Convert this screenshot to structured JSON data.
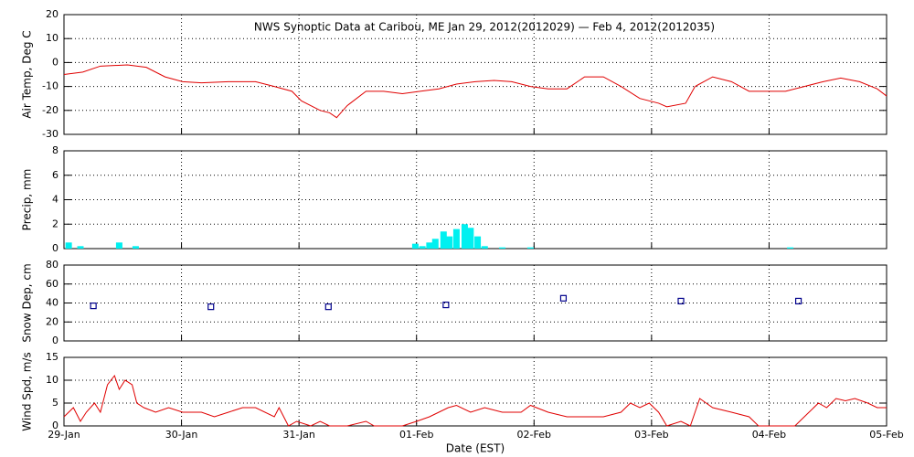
{
  "chart_data": [
    {
      "type": "line",
      "title": "NWS Synoptic Data at Caribou, ME   Jan 29, 2012(2012029) — Feb  4, 2012(2012035)",
      "y_label": "Air Temp, Deg C",
      "series": [
        {
          "color": "#e00000",
          "x": [
            0,
            0.16,
            0.31,
            0.54,
            0.7,
            0.86,
            1.01,
            1.17,
            1.4,
            1.63,
            1.79,
            1.94,
            2.02,
            2.18,
            2.26,
            2.32,
            2.41,
            2.57,
            2.72,
            2.88,
            3.03,
            3.19,
            3.34,
            3.5,
            3.66,
            3.81,
            3.97,
            4.12,
            4.28,
            4.43,
            4.59,
            4.74,
            4.9,
            5.06,
            5.13,
            5.29,
            5.37,
            5.52,
            5.68,
            5.83,
            5.99,
            6.14,
            6.3,
            6.46,
            6.61,
            6.77,
            6.92,
            7
          ],
          "values": [
            -5,
            -4,
            -1.5,
            -1,
            -2,
            -6,
            -8,
            -8.5,
            -8,
            -8,
            -10,
            -12,
            -16,
            -20,
            -21,
            -23,
            -18,
            -12,
            -12,
            -13,
            -12,
            -11,
            -9,
            -8,
            -7.5,
            -8,
            -10,
            -11,
            -11,
            -6,
            -6,
            -10,
            -15,
            -17,
            -18.5,
            -17,
            -10,
            -6,
            -8,
            -12,
            -12,
            -12,
            -10,
            -8,
            -6.5,
            -8,
            -11,
            -14
          ]
        }
      ],
      "xlim": [
        0,
        7
      ],
      "xticks": [
        0,
        1,
        2,
        3,
        4,
        5,
        6,
        7
      ],
      "ylim": [
        -30,
        20
      ],
      "yticks": [
        -30,
        -20,
        -10,
        0,
        10,
        20
      ],
      "grid": true
    },
    {
      "type": "bar",
      "y_label": "Precip, mm",
      "series": [
        {
          "color": "#00f0f0",
          "x": [
            0.04,
            0.14,
            0.47,
            0.61,
            2.99,
            3.05,
            3.11,
            3.16,
            3.23,
            3.28,
            3.34,
            3.41,
            3.46,
            3.52,
            3.58,
            3.73,
            3.97,
            6.18
          ],
          "values": [
            0.5,
            0.2,
            0.5,
            0.2,
            0.4,
            0.2,
            0.5,
            0.8,
            1.4,
            1.0,
            1.6,
            2.0,
            1.7,
            1.0,
            0.2,
            0.1,
            0.1,
            0.1
          ]
        }
      ],
      "xlim": [
        0,
        7
      ],
      "xticks": [
        0,
        1,
        2,
        3,
        4,
        5,
        6,
        7
      ],
      "ylim": [
        0,
        8
      ],
      "yticks": [
        0,
        2,
        4,
        6,
        8
      ],
      "grid": true
    },
    {
      "type": "scatter",
      "y_label": "Snow Dep, cm",
      "series": [
        {
          "color": "#00008b",
          "x": [
            0.25,
            1.25,
            2.25,
            3.25,
            4.25,
            5.25,
            6.25
          ],
          "values": [
            37,
            36,
            36,
            38,
            45,
            42,
            42
          ]
        }
      ],
      "xlim": [
        0,
        7
      ],
      "xticks": [
        0,
        1,
        2,
        3,
        4,
        5,
        6,
        7
      ],
      "ylim": [
        0,
        80
      ],
      "yticks": [
        0,
        20,
        40,
        60,
        80
      ],
      "grid": true
    },
    {
      "type": "line",
      "y_label": "Wind Spd, m/s",
      "x_label": "Date (EST)",
      "series": [
        {
          "color": "#e00000",
          "x": [
            0,
            0.08,
            0.14,
            0.19,
            0.26,
            0.31,
            0.37,
            0.43,
            0.47,
            0.52,
            0.58,
            0.62,
            0.68,
            0.78,
            0.89,
            1.01,
            1.17,
            1.28,
            1.4,
            1.52,
            1.63,
            1.79,
            1.83,
            1.91,
            1.98,
            2.1,
            2.18,
            2.26,
            2.41,
            2.57,
            2.64,
            2.88,
            3.0,
            3.11,
            3.27,
            3.34,
            3.46,
            3.58,
            3.73,
            3.89,
            3.97,
            4.12,
            4.28,
            4.43,
            4.59,
            4.74,
            4.82,
            4.9,
            4.98,
            5.06,
            5.13,
            5.25,
            5.33,
            5.41,
            5.52,
            5.68,
            5.83,
            5.91,
            6.07,
            6.22,
            6.3,
            6.42,
            6.49,
            6.57,
            6.65,
            6.73,
            6.84,
            6.92,
            7
          ],
          "values": [
            2,
            4,
            1,
            3,
            5,
            3,
            9,
            11,
            8,
            10,
            9,
            5,
            4,
            3,
            4,
            3,
            3,
            2,
            3,
            4,
            4,
            2,
            4,
            0,
            1,
            0,
            1,
            0,
            0,
            1,
            0,
            0,
            1,
            2,
            4,
            4.5,
            3,
            4,
            3,
            3,
            4.5,
            3,
            2,
            2,
            2,
            3,
            5,
            4,
            5,
            3,
            0,
            1,
            0,
            6,
            4,
            3,
            2,
            0,
            0,
            0,
            2,
            5,
            4,
            6,
            5.5,
            6,
            5,
            4,
            4
          ]
        }
      ],
      "xlim": [
        0,
        7
      ],
      "xticks": [
        {
          "value": 0,
          "label": "29-Jan"
        },
        {
          "value": 1,
          "label": "30-Jan"
        },
        {
          "value": 2,
          "label": "31-Jan"
        },
        {
          "value": 3,
          "label": "01-Feb"
        },
        {
          "value": 4,
          "label": "02-Feb"
        },
        {
          "value": 5,
          "label": "03-Feb"
        },
        {
          "value": 6,
          "label": "04-Feb"
        },
        {
          "value": 7,
          "label": "05-Feb"
        }
      ],
      "ylim": [
        0,
        15
      ],
      "yticks": [
        0,
        5,
        10,
        15
      ],
      "grid": true
    }
  ]
}
